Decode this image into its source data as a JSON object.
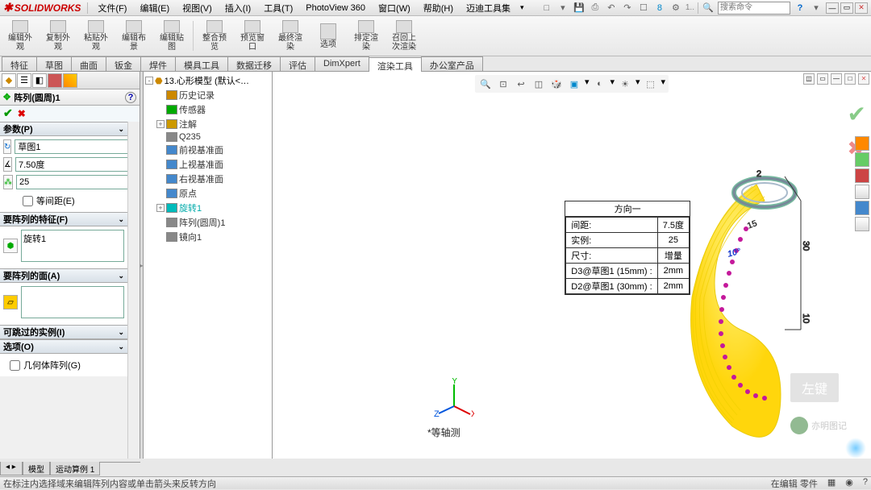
{
  "app": {
    "name": "SOLIDWORKS"
  },
  "menu": [
    "文件(F)",
    "编辑(E)",
    "视图(V)",
    "插入(I)",
    "工具(T)",
    "PhotoView 360",
    "窗口(W)",
    "帮助(H)",
    "迈迪工具集"
  ],
  "search_placeholder": "搜索命令",
  "ribbon": [
    {
      "l1": "编辑外",
      "l2": "观"
    },
    {
      "l1": "复制外",
      "l2": "观"
    },
    {
      "l1": "粘贴外",
      "l2": "观"
    },
    {
      "l1": "编辑布",
      "l2": "景"
    },
    {
      "l1": "编辑贴",
      "l2": "图"
    },
    {
      "sep": true
    },
    {
      "l1": "整合预",
      "l2": "览"
    },
    {
      "l1": "预览窗",
      "l2": "口"
    },
    {
      "l1": "最终渲",
      "l2": "染"
    },
    {
      "l1": "选项",
      "l2": ""
    },
    {
      "l1": "排定渲",
      "l2": "染"
    },
    {
      "l1": "召回上",
      "l2": "次渲染"
    }
  ],
  "tabs": [
    "特征",
    "草图",
    "曲面",
    "钣金",
    "焊件",
    "模具工具",
    "数据迁移",
    "评估",
    "DimXpert",
    "渲染工具",
    "办公室产品"
  ],
  "active_tab_index": 9,
  "panel": {
    "title": "阵列(圆周)1",
    "sections": {
      "params": {
        "hdr": "参数(P)",
        "field1": "草图1",
        "field2": "7.50度",
        "field3": "25",
        "chk": "等间距(E)"
      },
      "features": {
        "hdr": "要阵列的特征(F)",
        "item": "旋转1"
      },
      "faces": {
        "hdr": "要阵列的面(A)"
      },
      "skip": {
        "hdr": "可跳过的实例(I)"
      },
      "options": {
        "hdr": "选项(O)",
        "chk": "几何体阵列(G)"
      }
    }
  },
  "tree": {
    "root": "13.心形模型  (默认<…",
    "items": [
      {
        "ico": "#c80",
        "t": "历史记录"
      },
      {
        "ico": "#0a0",
        "t": "传感器"
      },
      {
        "ico": "#c90",
        "t": "注解",
        "exp": "+"
      },
      {
        "ico": "#888",
        "t": "Q235"
      },
      {
        "ico": "#48c",
        "t": "前视基准面"
      },
      {
        "ico": "#48c",
        "t": "上视基准面"
      },
      {
        "ico": "#48c",
        "t": "右视基准面"
      },
      {
        "ico": "#48c",
        "t": "原点"
      },
      {
        "ico": "#0bb",
        "t": "旋转1",
        "exp": "+",
        "hl": true
      },
      {
        "ico": "#888",
        "t": "阵列(圆周)1"
      },
      {
        "ico": "#888",
        "t": "镜向1"
      }
    ]
  },
  "info": {
    "title": "方向一",
    "rows": [
      [
        "间距:",
        "7.5度"
      ],
      [
        "实例:",
        "25"
      ],
      [
        "尺寸:",
        "增量"
      ],
      [
        "D3@草图1 (15mm) :",
        "2mm"
      ],
      [
        "D2@草图1 (30mm) :",
        "2mm"
      ]
    ]
  },
  "axis_view": "*等轴测",
  "bottom_tabs": [
    "",
    "模型",
    "运动算例 1"
  ],
  "status": {
    "left": "在标注内选择域来编辑阵列内容或单击箭头来反转方向",
    "r1": "在编辑 零件"
  },
  "watermark_badge": "左键",
  "watermark": "亦明图记",
  "colors": {
    "spiral": "#ffe138",
    "dots": "#c19",
    "ring": "#4a7",
    "ring2": "#789"
  }
}
